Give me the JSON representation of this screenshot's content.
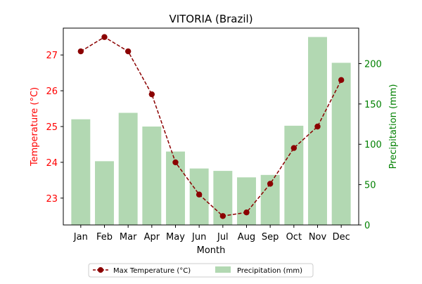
{
  "chart_data": {
    "type": "bar+line",
    "title": "VITORIA (Brazil)",
    "xlabel": "Month",
    "categories": [
      "Jan",
      "Feb",
      "Mar",
      "Apr",
      "May",
      "Jun",
      "Jul",
      "Aug",
      "Sep",
      "Oct",
      "Nov",
      "Dec"
    ],
    "series": [
      {
        "name": "Max Temperature (°C)",
        "type": "line",
        "axis": "left",
        "color": "#8b0000",
        "values": [
          27.1,
          27.5,
          27.1,
          25.9,
          24.0,
          23.1,
          22.5,
          22.6,
          23.4,
          24.4,
          25.0,
          26.3
        ]
      },
      {
        "name": "Precipitation (mm)",
        "type": "bar",
        "axis": "right",
        "color": "#b2d8b2",
        "values": [
          131,
          79,
          139,
          122,
          91,
          70,
          67,
          59,
          62,
          123,
          233,
          201
        ]
      }
    ],
    "y_left": {
      "label": "Temperature (°C)",
      "color": "#ff0000",
      "range": [
        22.25,
        27.75
      ],
      "ticks": [
        23,
        24,
        25,
        26,
        27
      ]
    },
    "y_right": {
      "label": "Precipitation (mm)",
      "color": "#008000",
      "range": [
        0,
        244
      ],
      "ticks": [
        0,
        50,
        100,
        150,
        200
      ]
    },
    "grid": false,
    "legend": {
      "placement": "bottom-center",
      "entries": [
        "Max Temperature (°C)",
        "Precipitation (mm)"
      ]
    }
  }
}
